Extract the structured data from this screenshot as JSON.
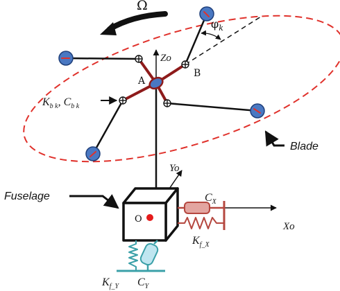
{
  "diagram": {
    "rotation_symbol": "Ω",
    "angle_label": "φ",
    "angle_subscript": "k",
    "axes": {
      "z": {
        "main": "Z",
        "sub": "o"
      },
      "y": {
        "main": "Y",
        "sub": "o"
      },
      "x": {
        "main": "X",
        "sub": "o"
      }
    },
    "hinge_a": "A",
    "hinge_b": "B",
    "origin_label": "O",
    "blade_spring": {
      "k": "K",
      "k_sub": "b k",
      "sep": ", ",
      "c": "C",
      "c_sub": "b k"
    },
    "blade_label": "Blade",
    "fuselage_label": "Fuselage",
    "damper_x": {
      "main": "C",
      "sub": "X"
    },
    "spring_x": {
      "main": "K",
      "sub": "f_X"
    },
    "spring_y": {
      "main": "K",
      "sub": "f_Y"
    },
    "damper_y": {
      "main": "C",
      "sub": "Y"
    }
  },
  "colors": {
    "ellipse": "#e0312b",
    "blade_arm": "#8e1b1b",
    "arm": "#111111",
    "mass_fill": "#4a78c2",
    "mass_stroke": "#1f3f7a",
    "origin_dot": "#e51b1b",
    "spring_x": "#b5473f",
    "damper_x": "#e3a5a0",
    "spring_y": "#3aa0a8",
    "damper_y": "#bfe6f0"
  }
}
